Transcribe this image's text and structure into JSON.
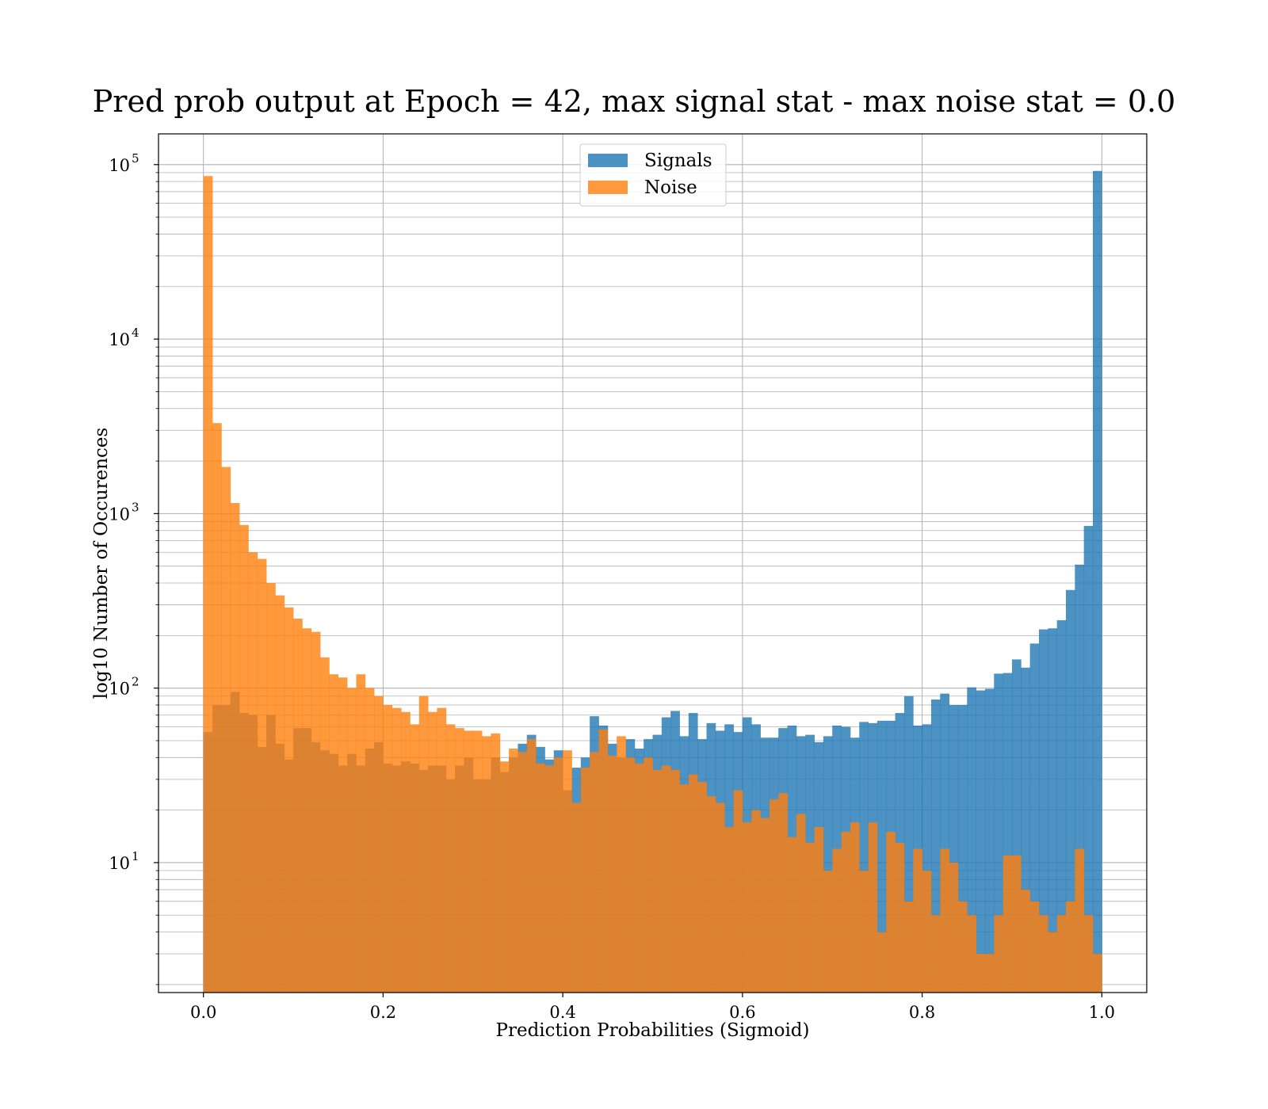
{
  "chart_data": {
    "type": "bar",
    "title": "Pred prob output at Epoch = 42, max signal stat - max noise stat = 0.0",
    "xlabel": "Prediction Probabilities (Sigmoid)",
    "ylabel": "log10 Number of Occurences",
    "xlim": [
      -0.05,
      1.05
    ],
    "ylim": [
      1.8,
      150000
    ],
    "y_scale": "log",
    "grid": true,
    "legend_position": "top-center",
    "x_ticks": [
      0.0,
      0.2,
      0.4,
      0.6,
      0.8,
      1.0
    ],
    "x_tick_labels": [
      "0.0",
      "0.2",
      "0.4",
      "0.6",
      "0.8",
      "1.0"
    ],
    "y_ticks": [
      {
        "value": 10,
        "base": "10",
        "exp": "1"
      },
      {
        "value": 100,
        "base": "10",
        "exp": "2"
      },
      {
        "value": 1000,
        "base": "10",
        "exp": "3"
      },
      {
        "value": 10000,
        "base": "10",
        "exp": "4"
      },
      {
        "value": 100000,
        "base": "10",
        "exp": "5"
      }
    ],
    "bin_start": 0.0,
    "bin_width": 0.01,
    "series": [
      {
        "name": "Signals",
        "color": "#1f77b4",
        "opacity": 0.8,
        "values": [
          56,
          80,
          80,
          95,
          72,
          70,
          46,
          70,
          48,
          39,
          59,
          59,
          49,
          44,
          42,
          36,
          42,
          36,
          45,
          49,
          37,
          36,
          38,
          37,
          34,
          36,
          36,
          30,
          36,
          40,
          30,
          30,
          40,
          33,
          40,
          48,
          54,
          46,
          39,
          44,
          26,
          35,
          40,
          69,
          61,
          48,
          40,
          51,
          45,
          51,
          54,
          68,
          74,
          53,
          72,
          51,
          63,
          57,
          62,
          56,
          68,
          62,
          52,
          52,
          59,
          61,
          53,
          54,
          49,
          53,
          61,
          60,
          52,
          64,
          63,
          65,
          65,
          72,
          90,
          61,
          62,
          86,
          93,
          80,
          80,
          101,
          97,
          99,
          121,
          122,
          146,
          131,
          180,
          217,
          220,
          245,
          365,
          510,
          850,
          92000
        ]
      },
      {
        "name": "Noise",
        "color": "#ff7f0e",
        "opacity": 0.8,
        "values": [
          86000,
          3300,
          1850,
          1150,
          860,
          600,
          550,
          400,
          340,
          290,
          250,
          220,
          210,
          150,
          120,
          115,
          100,
          120,
          100,
          90,
          80,
          77,
          73,
          62,
          90,
          73,
          77,
          62,
          59,
          57,
          57,
          53,
          55,
          38,
          45,
          43,
          51,
          37,
          36,
          40,
          44,
          22,
          35,
          43,
          58,
          41,
          53,
          40,
          37,
          40,
          34,
          36,
          34,
          28,
          32,
          29,
          24,
          22,
          16,
          26,
          17,
          20,
          18,
          23,
          25,
          14,
          19,
          13,
          16,
          9,
          12,
          15,
          17,
          9,
          17,
          4,
          15,
          13,
          6,
          12,
          9,
          5,
          12,
          10,
          6,
          5,
          3,
          3,
          5,
          11,
          11,
          7,
          6,
          5,
          4,
          5,
          6,
          12,
          5,
          3
        ]
      }
    ]
  }
}
